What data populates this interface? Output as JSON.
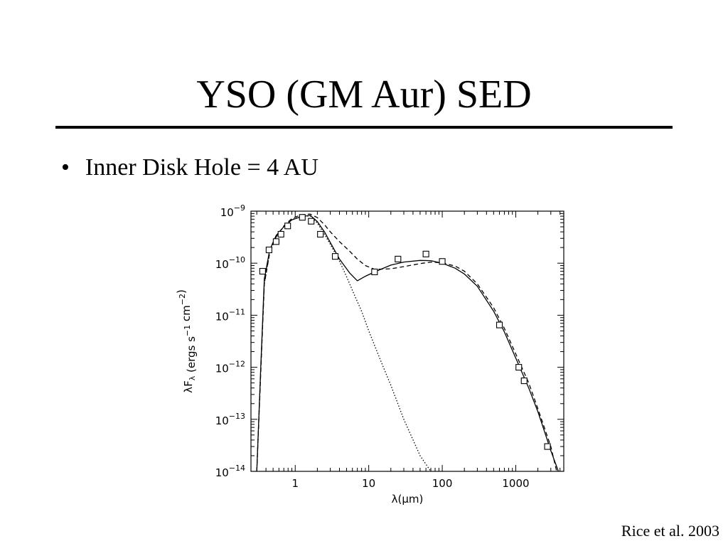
{
  "slide": {
    "title": "YSO (GM Aur) SED",
    "bullet_marker": "•",
    "bullet": "Inner Disk Hole = 4 AU",
    "caption": "Rice et al. 2003"
  },
  "chart_data": {
    "type": "line",
    "xlabel": "λ(μm)",
    "ylabel": "λF_λ (ergs s^-1 cm^-2)",
    "xscale": "log",
    "yscale": "log",
    "xlim": [
      0.25,
      4500
    ],
    "ylim": [
      1e-14,
      1e-09
    ],
    "x_ticks": [
      1,
      10,
      100,
      1000
    ],
    "x_tick_labels": [
      "1",
      "10",
      "100",
      "1000"
    ],
    "y_ticks": [
      1e-14,
      1e-13,
      1e-12,
      1e-11,
      1e-10,
      1e-09
    ],
    "y_tick_labels": [
      {
        "base": "10",
        "exp": "−14"
      },
      {
        "base": "10",
        "exp": "−13"
      },
      {
        "base": "10",
        "exp": "−12"
      },
      {
        "base": "10",
        "exp": "−11"
      },
      {
        "base": "10",
        "exp": "−10"
      },
      {
        "base": "10",
        "exp": "−9"
      }
    ],
    "grid": false,
    "series": [
      {
        "style": "observations (open squares)",
        "marker": "square",
        "points": [
          [
            0.36,
            7e-11
          ],
          [
            0.44,
            1.8e-10
          ],
          [
            0.55,
            2.6e-10
          ],
          [
            0.64,
            3.6e-10
          ],
          [
            0.79,
            5.2e-10
          ],
          [
            1.25,
            7.6e-10
          ],
          [
            1.65,
            6.4e-10
          ],
          [
            2.2,
            3.6e-10
          ],
          [
            3.5,
            1.35e-10
          ],
          [
            12,
            6.8e-11
          ],
          [
            25,
            1.2e-10
          ],
          [
            60,
            1.5e-10
          ],
          [
            100,
            1.08e-10
          ],
          [
            600,
            6.5e-12
          ],
          [
            1100,
            1e-12
          ],
          [
            1300,
            5.5e-13
          ],
          [
            2700,
            3e-14
          ]
        ]
      },
      {
        "style": "solid",
        "points": [
          [
            0.3,
            1e-14
          ],
          [
            0.34,
            1e-12
          ],
          [
            0.38,
            5e-11
          ],
          [
            0.45,
            1.8e-10
          ],
          [
            0.55,
            3.4e-10
          ],
          [
            0.7,
            5e-10
          ],
          [
            0.9,
            6.8e-10
          ],
          [
            1.2,
            7.8e-10
          ],
          [
            1.6,
            8.3e-10
          ],
          [
            2.0,
            6.3e-10
          ],
          [
            2.5,
            4e-10
          ],
          [
            3.0,
            2.5e-10
          ],
          [
            4.0,
            1.2e-10
          ],
          [
            5.5,
            6.5e-11
          ],
          [
            7.0,
            4.6e-11
          ],
          [
            9.0,
            5.6e-11
          ],
          [
            12,
            6.8e-11
          ],
          [
            20,
            9.2e-11
          ],
          [
            30,
            1.05e-10
          ],
          [
            50,
            1.13e-10
          ],
          [
            70,
            1.12e-10
          ],
          [
            100,
            1e-10
          ],
          [
            150,
            8e-11
          ],
          [
            200,
            6.2e-11
          ],
          [
            300,
            3.6e-11
          ],
          [
            500,
            1.2e-11
          ],
          [
            700,
            4.8e-12
          ],
          [
            1000,
            1.5e-12
          ],
          [
            1500,
            4e-13
          ],
          [
            2000,
            1.4e-13
          ],
          [
            3000,
            2.5e-14
          ],
          [
            3800,
            1e-14
          ]
        ]
      },
      {
        "style": "dashed",
        "points": [
          [
            0.3,
            1e-14
          ],
          [
            0.34,
            8e-13
          ],
          [
            0.38,
            4e-11
          ],
          [
            0.45,
            1.6e-10
          ],
          [
            0.55,
            3.2e-10
          ],
          [
            0.7,
            5.2e-10
          ],
          [
            0.9,
            7.2e-10
          ],
          [
            1.2,
            8.5e-10
          ],
          [
            1.6,
            8.8e-10
          ],
          [
            2.0,
            7.5e-10
          ],
          [
            2.5,
            5.5e-10
          ],
          [
            3.0,
            4e-10
          ],
          [
            4.0,
            2.6e-10
          ],
          [
            5.5,
            1.7e-10
          ],
          [
            7.0,
            1.2e-10
          ],
          [
            9.0,
            9e-11
          ],
          [
            12,
            7.6e-11
          ],
          [
            20,
            7.8e-11
          ],
          [
            30,
            8.6e-11
          ],
          [
            50,
            9.8e-11
          ],
          [
            70,
            1.05e-10
          ],
          [
            100,
            1.02e-10
          ],
          [
            150,
            8.8e-11
          ],
          [
            200,
            7e-11
          ],
          [
            300,
            4e-11
          ],
          [
            500,
            1.4e-11
          ],
          [
            700,
            5.6e-12
          ],
          [
            1000,
            1.8e-12
          ],
          [
            1500,
            5e-13
          ],
          [
            2000,
            1.6e-13
          ],
          [
            3000,
            3e-14
          ],
          [
            3600,
            1e-14
          ]
        ]
      },
      {
        "style": "dotted",
        "points": [
          [
            0.3,
            1e-14
          ],
          [
            0.34,
            1e-12
          ],
          [
            0.38,
            4e-11
          ],
          [
            0.45,
            1.6e-10
          ],
          [
            0.55,
            3.3e-10
          ],
          [
            0.7,
            5e-10
          ],
          [
            0.9,
            6.9e-10
          ],
          [
            1.2,
            7.9e-10
          ],
          [
            1.6,
            8.1e-10
          ],
          [
            2.0,
            5.9e-10
          ],
          [
            2.5,
            3.6e-10
          ],
          [
            3.0,
            2.3e-10
          ],
          [
            4.0,
            1.1e-10
          ],
          [
            5.0,
            5.5e-11
          ],
          [
            6.0,
            3e-11
          ],
          [
            8.0,
            1.2e-11
          ],
          [
            10,
            5e-12
          ],
          [
            15,
            1.2e-12
          ],
          [
            20,
            4.5e-13
          ],
          [
            30,
            1e-13
          ],
          [
            50,
            2e-14
          ],
          [
            70,
            1e-14
          ]
        ]
      }
    ]
  }
}
